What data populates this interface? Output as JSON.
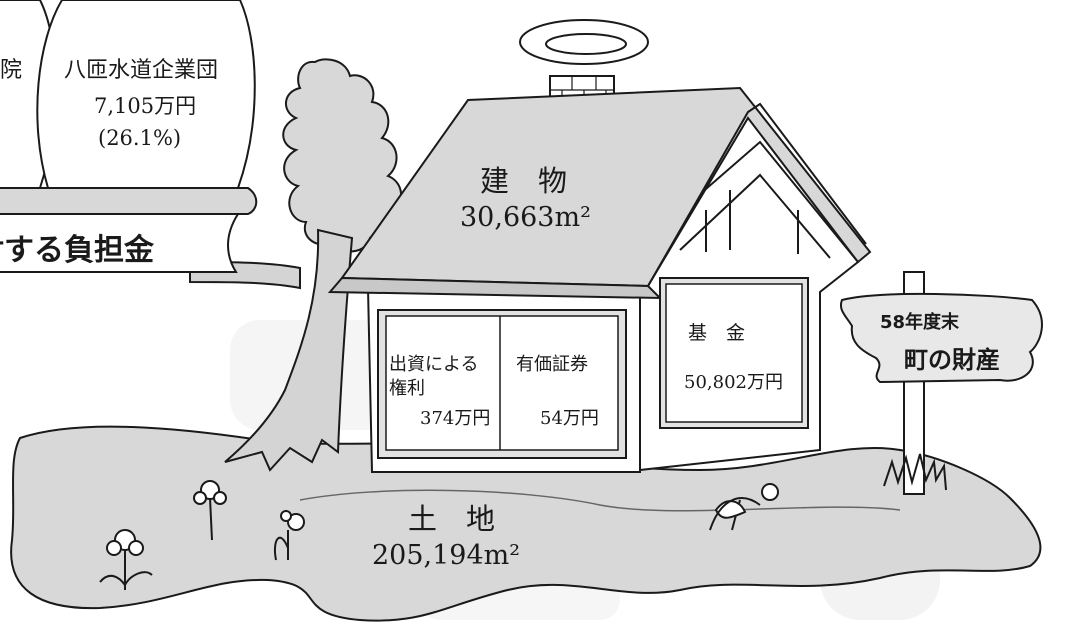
{
  "left_panel": {
    "partial_label": "院",
    "yatsuo_water": {
      "name": "八匝水道企業団",
      "amount": "7,105万円",
      "percent": "(26.1%)"
    },
    "burden_banner": "対する負担金"
  },
  "house": {
    "roof": {
      "label": "建　物",
      "area": "30,663m²"
    },
    "window_left": {
      "investment_rights": {
        "line1": "出資による",
        "line2": "権利",
        "amount": "374万円"
      },
      "securities": {
        "label": "有価証券",
        "amount": "54万円"
      }
    },
    "window_right": {
      "fund": {
        "label": "基　金",
        "amount": "50,802万円"
      }
    }
  },
  "ground": {
    "label": "土　地",
    "area": "205,194m²"
  },
  "signpost": {
    "year": "58年度末",
    "title": "町の財産"
  }
}
